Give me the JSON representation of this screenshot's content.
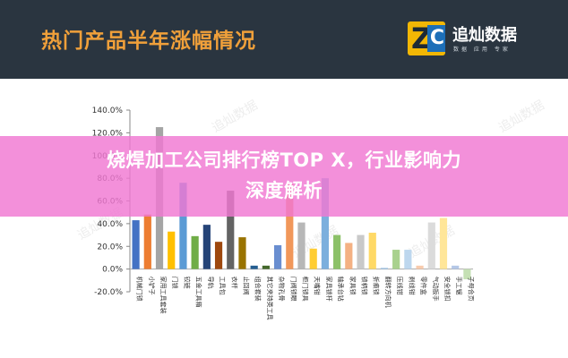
{
  "header": {
    "title": "热门产品半年涨幅情况",
    "logo_name": "追灿数据",
    "logo_sub": "数据 应用 专家",
    "logo_mark_z": "Z",
    "logo_mark_c": "C"
  },
  "overlay": {
    "title_line1": "烧焊加工公司排行榜TOP X，行业影响力",
    "title_line2": "深度解析"
  },
  "watermark": "追灿数据",
  "colors": {
    "header_bg": "#2a3540",
    "header_title": "#f0a03a",
    "overlay": "#f078d2"
  },
  "chart_data": {
    "type": "bar",
    "title": "",
    "xlabel": "",
    "ylabel": "",
    "ylim": [
      -20,
      140
    ],
    "yticks": [
      "-20.0%",
      "0.0%",
      "20.0%",
      "40.0%",
      "60.0%",
      "80.0%",
      "100.0%",
      "120.0%",
      "140.0%"
    ],
    "grid": false,
    "categories": [
      "机械门锁",
      "小铲子",
      "家用工具套装",
      "门锁",
      "铰链",
      "五金工具箱",
      "导轨",
      "工具包",
      "衣杆",
      "止回阀",
      "组合套装",
      "其它夹持类工具",
      "杂物孔骨",
      "门阀锁眼",
      "柜门锁具",
      "天嘴钳",
      "家具锁杆",
      "轴承台钻",
      "家具锁",
      "锁柄锁",
      "折痕锁",
      "翻转方向机",
      "压线钳",
      "剥线钳",
      "零件盒",
      "气动扳手",
      "安全锁扣",
      "手工锯",
      "子母合页"
    ],
    "values": [
      43,
      48,
      125,
      33,
      76,
      29,
      39,
      24,
      69,
      28,
      3,
      3,
      21,
      75,
      41,
      18,
      80,
      30,
      23,
      30,
      32,
      1,
      17,
      17,
      3,
      41,
      45,
      3,
      -9
    ],
    "bar_colors": [
      "#4472c4",
      "#ed7d31",
      "#a5a5a5",
      "#ffc000",
      "#5b9bd5",
      "#70ad47",
      "#264478",
      "#9e480e",
      "#636363",
      "#997300",
      "#255e91",
      "#43682b",
      "#698ed0",
      "#f1975a",
      "#b7b7b7",
      "#ffcd33",
      "#7cafdd",
      "#8cc168",
      "#f4b183",
      "#c9c9c9",
      "#ffd966",
      "#9dc3e6",
      "#a9d18e",
      "#bdd7ee",
      "#f8cbad",
      "#dbdbdb",
      "#ffe699",
      "#b4c7e7",
      "#c5e0b4"
    ]
  }
}
